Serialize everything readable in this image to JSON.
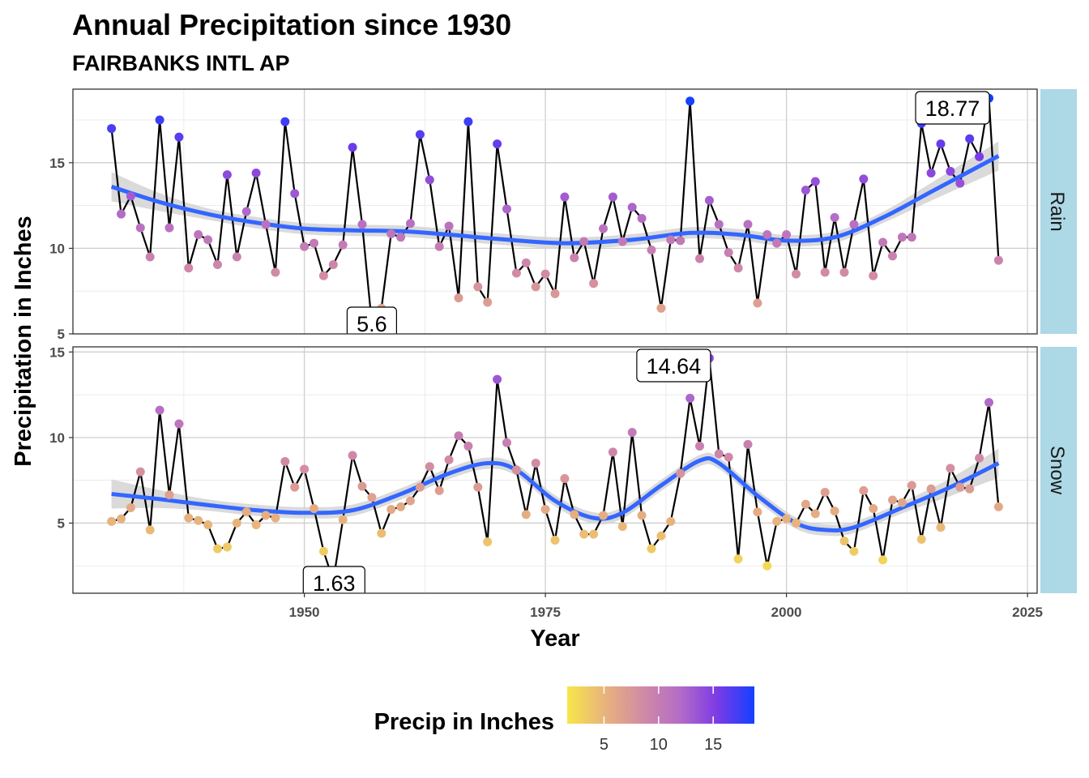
{
  "chart_data": {
    "type": "line",
    "title": "Annual Precipitation since 1930",
    "subtitle": "FAIRBANKS INTL AP",
    "xlabel": "Year",
    "ylabel": "Precipitation in Inches",
    "xlim": [
      1926,
      2026
    ],
    "x_ticks": [
      1950,
      1975,
      2000,
      2025
    ],
    "grid": true,
    "legend": {
      "title": "Precip in Inches",
      "placement": "bottom",
      "range": [
        1.63,
        18.77
      ],
      "ticks": [
        5,
        10,
        15
      ],
      "colors": [
        "#f7e64a",
        "#e8b37c",
        "#d28ba4",
        "#b46cc6",
        "#7d3be6",
        "#1340ff"
      ]
    },
    "smooth_color": "#3366ff",
    "panels": [
      {
        "name": "Rain",
        "ylim": [
          5,
          19.3
        ],
        "y_ticks": [
          5,
          10,
          15
        ],
        "x": [
          1930,
          1931,
          1932,
          1933,
          1934,
          1935,
          1936,
          1937,
          1938,
          1939,
          1940,
          1941,
          1942,
          1943,
          1944,
          1945,
          1946,
          1947,
          1948,
          1949,
          1950,
          1951,
          1952,
          1953,
          1954,
          1955,
          1956,
          1957,
          1958,
          1959,
          1960,
          1961,
          1962,
          1963,
          1964,
          1965,
          1966,
          1967,
          1968,
          1969,
          1970,
          1971,
          1972,
          1973,
          1974,
          1975,
          1976,
          1977,
          1978,
          1979,
          1980,
          1981,
          1982,
          1983,
          1984,
          1985,
          1986,
          1987,
          1988,
          1989,
          1990,
          1991,
          1992,
          1993,
          1994,
          1995,
          1996,
          1997,
          1998,
          1999,
          2000,
          2001,
          2002,
          2003,
          2004,
          2005,
          2006,
          2007,
          2008,
          2009,
          2010,
          2011,
          2012,
          2013,
          2014,
          2015,
          2016,
          2017,
          2018,
          2019,
          2020,
          2021,
          2022
        ],
        "values": [
          17.0,
          12.0,
          13.05,
          11.2,
          9.5,
          17.5,
          11.2,
          16.5,
          8.85,
          10.8,
          10.5,
          9.05,
          14.3,
          9.5,
          12.15,
          14.4,
          11.4,
          8.6,
          17.4,
          13.2,
          10.1,
          10.3,
          8.4,
          9.05,
          10.2,
          15.9,
          11.4,
          5.6,
          6.5,
          10.85,
          10.65,
          11.45,
          16.65,
          14.0,
          10.1,
          11.3,
          7.1,
          17.4,
          7.75,
          6.85,
          16.1,
          12.3,
          8.55,
          9.15,
          7.75,
          8.5,
          7.35,
          13.0,
          9.45,
          10.4,
          7.95,
          11.15,
          13.0,
          10.4,
          12.4,
          11.75,
          9.9,
          6.5,
          10.5,
          10.45,
          18.6,
          9.4,
          12.8,
          11.4,
          9.75,
          8.85,
          11.4,
          6.8,
          10.8,
          10.3,
          10.8,
          8.5,
          13.4,
          13.9,
          8.6,
          11.8,
          8.6,
          11.4,
          14.05,
          8.4,
          10.35,
          9.55,
          10.65,
          10.65,
          17.3,
          14.4,
          16.1,
          14.5,
          13.8,
          16.4,
          15.35,
          18.77,
          9.3
        ],
        "smooth": {
          "x": [
            1930,
            1935,
            1940,
            1945,
            1950,
            1955,
            1960,
            1965,
            1970,
            1977,
            1984,
            1990,
            1995,
            2000,
            2005,
            2010,
            2015,
            2022
          ],
          "y": [
            13.6,
            12.7,
            12.0,
            11.5,
            11.15,
            11.05,
            11.0,
            10.8,
            10.55,
            10.3,
            10.5,
            10.9,
            10.8,
            10.45,
            10.65,
            11.8,
            13.3,
            15.4
          ]
        },
        "labels": [
          {
            "year": 1957,
            "value": 5.6,
            "text": "5.6"
          },
          {
            "year": 2021,
            "value": 18.77,
            "text": "18.77"
          }
        ]
      },
      {
        "name": "Snow",
        "ylim": [
          0.9,
          15.3
        ],
        "y_ticks": [
          5,
          10,
          15
        ],
        "x": [
          1930,
          1931,
          1932,
          1933,
          1934,
          1935,
          1936,
          1937,
          1938,
          1939,
          1940,
          1941,
          1942,
          1943,
          1944,
          1945,
          1946,
          1947,
          1948,
          1949,
          1950,
          1951,
          1952,
          1953,
          1954,
          1955,
          1956,
          1957,
          1958,
          1959,
          1960,
          1961,
          1962,
          1963,
          1964,
          1965,
          1966,
          1967,
          1968,
          1969,
          1970,
          1971,
          1972,
          1973,
          1974,
          1975,
          1976,
          1977,
          1978,
          1979,
          1980,
          1981,
          1982,
          1983,
          1984,
          1985,
          1986,
          1987,
          1988,
          1989,
          1990,
          1991,
          1992,
          1993,
          1994,
          1995,
          1996,
          1997,
          1998,
          1999,
          2000,
          2001,
          2002,
          2003,
          2004,
          2005,
          2006,
          2007,
          2008,
          2009,
          2010,
          2011,
          2012,
          2013,
          2014,
          2015,
          2016,
          2017,
          2018,
          2019,
          2020,
          2021,
          2022
        ],
        "values": [
          5.1,
          5.25,
          5.9,
          8.0,
          4.6,
          11.6,
          6.65,
          10.8,
          5.3,
          5.15,
          4.9,
          3.5,
          3.6,
          5.0,
          5.65,
          4.9,
          5.45,
          5.3,
          8.6,
          7.1,
          8.15,
          5.85,
          3.35,
          1.63,
          5.2,
          8.95,
          7.15,
          6.5,
          4.4,
          5.8,
          5.95,
          6.3,
          7.1,
          8.3,
          6.9,
          8.7,
          10.1,
          9.5,
          7.1,
          3.9,
          13.4,
          9.7,
          8.1,
          5.5,
          8.5,
          5.8,
          4.0,
          7.6,
          5.5,
          4.35,
          4.35,
          5.45,
          9.15,
          4.8,
          10.3,
          5.45,
          3.5,
          4.25,
          5.1,
          7.9,
          12.3,
          9.5,
          14.64,
          9.05,
          8.85,
          2.9,
          9.6,
          5.65,
          2.5,
          5.1,
          5.25,
          5.0,
          6.1,
          5.55,
          6.8,
          5.7,
          3.95,
          3.35,
          6.9,
          5.85,
          2.85,
          6.35,
          6.2,
          7.2,
          4.05,
          7.0,
          4.75,
          8.2,
          7.1,
          7.0,
          8.8,
          12.05,
          5.95
        ],
        "smooth": {
          "x": [
            1930,
            1935,
            1940,
            1945,
            1950,
            1955,
            1960,
            1965,
            1969,
            1972,
            1976,
            1980,
            1983,
            1987,
            1991,
            1993,
            1997,
            2001,
            2004,
            2007,
            2012,
            2017,
            2022
          ],
          "y": [
            6.7,
            6.4,
            6.05,
            5.75,
            5.6,
            5.75,
            6.7,
            7.9,
            8.5,
            8.1,
            6.3,
            5.3,
            5.6,
            7.2,
            8.65,
            8.5,
            6.6,
            5.0,
            4.6,
            4.75,
            5.9,
            7.1,
            8.5
          ]
        },
        "labels": [
          {
            "year": 1953,
            "value": 1.63,
            "text": "1.63"
          },
          {
            "year": 1992,
            "value": 14.64,
            "text": "14.64"
          }
        ]
      }
    ]
  }
}
